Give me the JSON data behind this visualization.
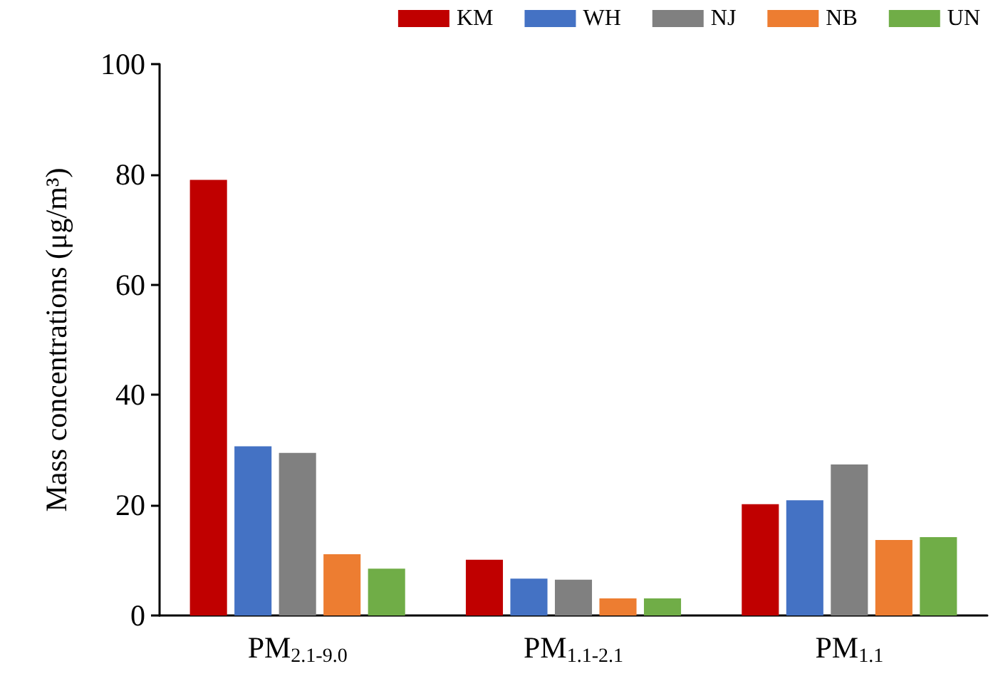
{
  "chart_data": {
    "type": "bar",
    "ylabel": "Mass concentrations (μg/m³)",
    "categories": [
      "PM$_{2.1-9.0}$",
      "PM$_{1.1-2.1}$",
      "PM$_{1.1}$"
    ],
    "series": [
      {
        "name": "KM",
        "color": "#c00000",
        "values": [
          79,
          10.1,
          20.2
        ]
      },
      {
        "name": "WH",
        "color": "#4472c4",
        "values": [
          30.7,
          6.7,
          20.9
        ]
      },
      {
        "name": "NJ",
        "color": "#808080",
        "values": [
          29.5,
          6.5,
          27.4
        ]
      },
      {
        "name": "NB",
        "color": "#ed7d31",
        "values": [
          11.1,
          3.1,
          13.7
        ]
      },
      {
        "name": "UN",
        "color": "#70ad47",
        "values": [
          8.5,
          3.1,
          14.2
        ]
      }
    ],
    "ylim": [
      0,
      100
    ],
    "yticks": [
      0,
      20,
      40,
      60,
      80,
      100
    ],
    "grid": false,
    "legend": "top right"
  }
}
